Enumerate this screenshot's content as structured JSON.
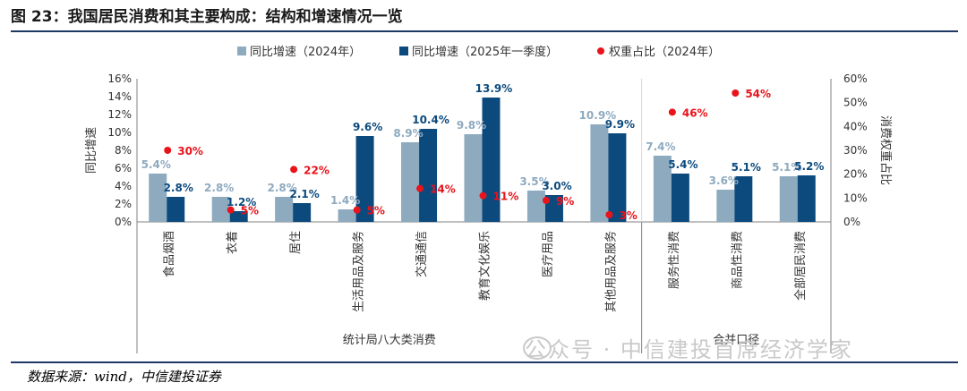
{
  "title": "图 23：我国居民消费和其主要构成：结构和增速情况一览",
  "source": "数据来源：wind，中信建投证券",
  "watermark": "公众号 · 中信建投首席经济学家",
  "colors": {
    "s2024": "#8eaabf",
    "s2025": "#0c4a7e",
    "weight": "#e8131b",
    "axis": "#808080"
  },
  "chart_data": {
    "type": "bar",
    "categories": [
      "食品烟酒",
      "衣着",
      "居住",
      "生活用品及服务",
      "交通通信",
      "教育文化娱乐",
      "医疗用品",
      "其他用品及服务",
      "服务性消费",
      "商品性消费",
      "全部居民消费"
    ],
    "series": [
      {
        "name": "同比增速（2024年）",
        "values": [
          5.4,
          2.8,
          2.8,
          1.4,
          8.9,
          9.8,
          3.5,
          10.9,
          7.4,
          3.6,
          5.1
        ],
        "labels": [
          "5.4%",
          "2.8%",
          "2.8%",
          "1.4%",
          "8.9%",
          "9.8%",
          "3.5%",
          "10.9%",
          "7.4%",
          "3.6%",
          "5.1%"
        ]
      },
      {
        "name": "同比增速（2025年一季度）",
        "values": [
          2.8,
          1.2,
          2.1,
          9.6,
          10.4,
          13.9,
          3.0,
          9.9,
          5.4,
          5.1,
          5.2
        ],
        "labels": [
          "2.8%",
          "1.2%",
          "2.1%",
          "9.6%",
          "10.4%",
          "13.9%",
          "3.0%",
          "9.9%",
          "5.4%",
          "5.1%",
          "5.2%"
        ]
      },
      {
        "name": "权重占比（2024年）",
        "axis": "right",
        "values": [
          30,
          5,
          22,
          5,
          14,
          11,
          9,
          3,
          46,
          54,
          null
        ],
        "labels": [
          "30%",
          "5%",
          "22%",
          "5%",
          "14%",
          "11%",
          "9%",
          "3%",
          "46%",
          "54%",
          ""
        ]
      }
    ],
    "ylabel": "同比增速",
    "y2label": "消费权重占比",
    "ylim": [
      0,
      16
    ],
    "y2lim": [
      0,
      60
    ],
    "yticks": [
      "0%",
      "2%",
      "4%",
      "6%",
      "8%",
      "10%",
      "12%",
      "14%",
      "16%"
    ],
    "y2ticks": [
      "0%",
      "10%",
      "20%",
      "30%",
      "40%",
      "50%",
      "60%"
    ],
    "groups": [
      {
        "label": "统计局八大类消费",
        "count": 8
      },
      {
        "label": "合并口径",
        "count": 3
      }
    ],
    "legend_position": "top"
  }
}
